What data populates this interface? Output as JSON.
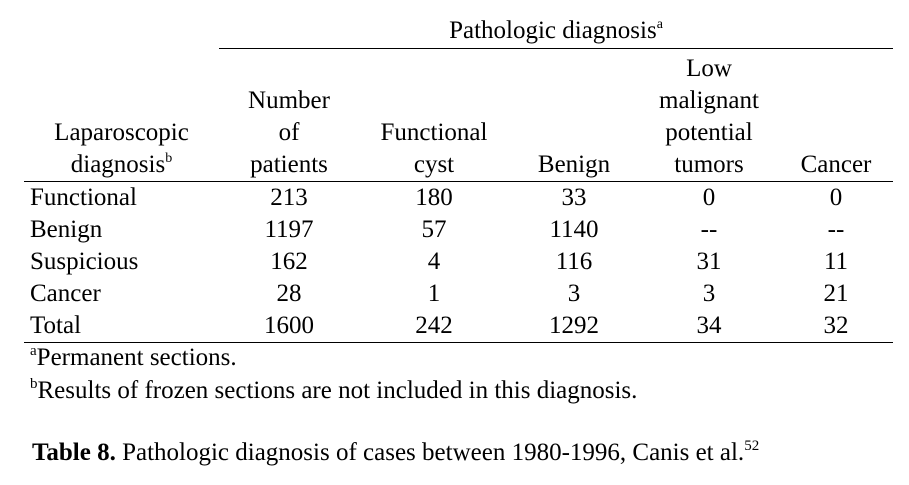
{
  "table": {
    "group_header": {
      "label": "Pathologic diagnosis",
      "sup": "a"
    },
    "first_column_header": {
      "label_line1": "Laparoscopic",
      "label_line2": "diagnosis",
      "sup": "b"
    },
    "column_headers": [
      {
        "line1": "",
        "line2": "Number",
        "line3": "of",
        "line4": "patients"
      },
      {
        "line1": "",
        "line2": "",
        "line3": "Functional",
        "line4": "cyst"
      },
      {
        "line1": "",
        "line2": "",
        "line3": "",
        "line4": "Benign"
      },
      {
        "line1": "Low",
        "line2": "malignant",
        "line3": "potential",
        "line4": "tumors"
      },
      {
        "line1": "",
        "line2": "",
        "line3": "",
        "line4": "Cancer"
      }
    ],
    "rows": [
      {
        "label": "Functional",
        "values": [
          "213",
          "180",
          "33",
          "0",
          "0"
        ]
      },
      {
        "label": "Benign",
        "values": [
          "1197",
          "57",
          "1140",
          "--",
          "--"
        ]
      },
      {
        "label": "Suspicious",
        "values": [
          "162",
          "4",
          "116",
          "31",
          "11"
        ]
      },
      {
        "label": "Cancer",
        "values": [
          "28",
          "1",
          "3",
          "3",
          "21"
        ]
      },
      {
        "label": "Total",
        "values": [
          "1600",
          "242",
          "1292",
          "34",
          "32"
        ]
      }
    ]
  },
  "footnotes": [
    {
      "marker": "a",
      "text": "Permanent sections."
    },
    {
      "marker": "b",
      "text": "Results of frozen sections are not included in this diagnosis."
    }
  ],
  "caption": {
    "label": "Table 8.",
    "text": " Pathologic diagnosis of cases between 1980-1996, Canis et al.",
    "ref": "52"
  }
}
